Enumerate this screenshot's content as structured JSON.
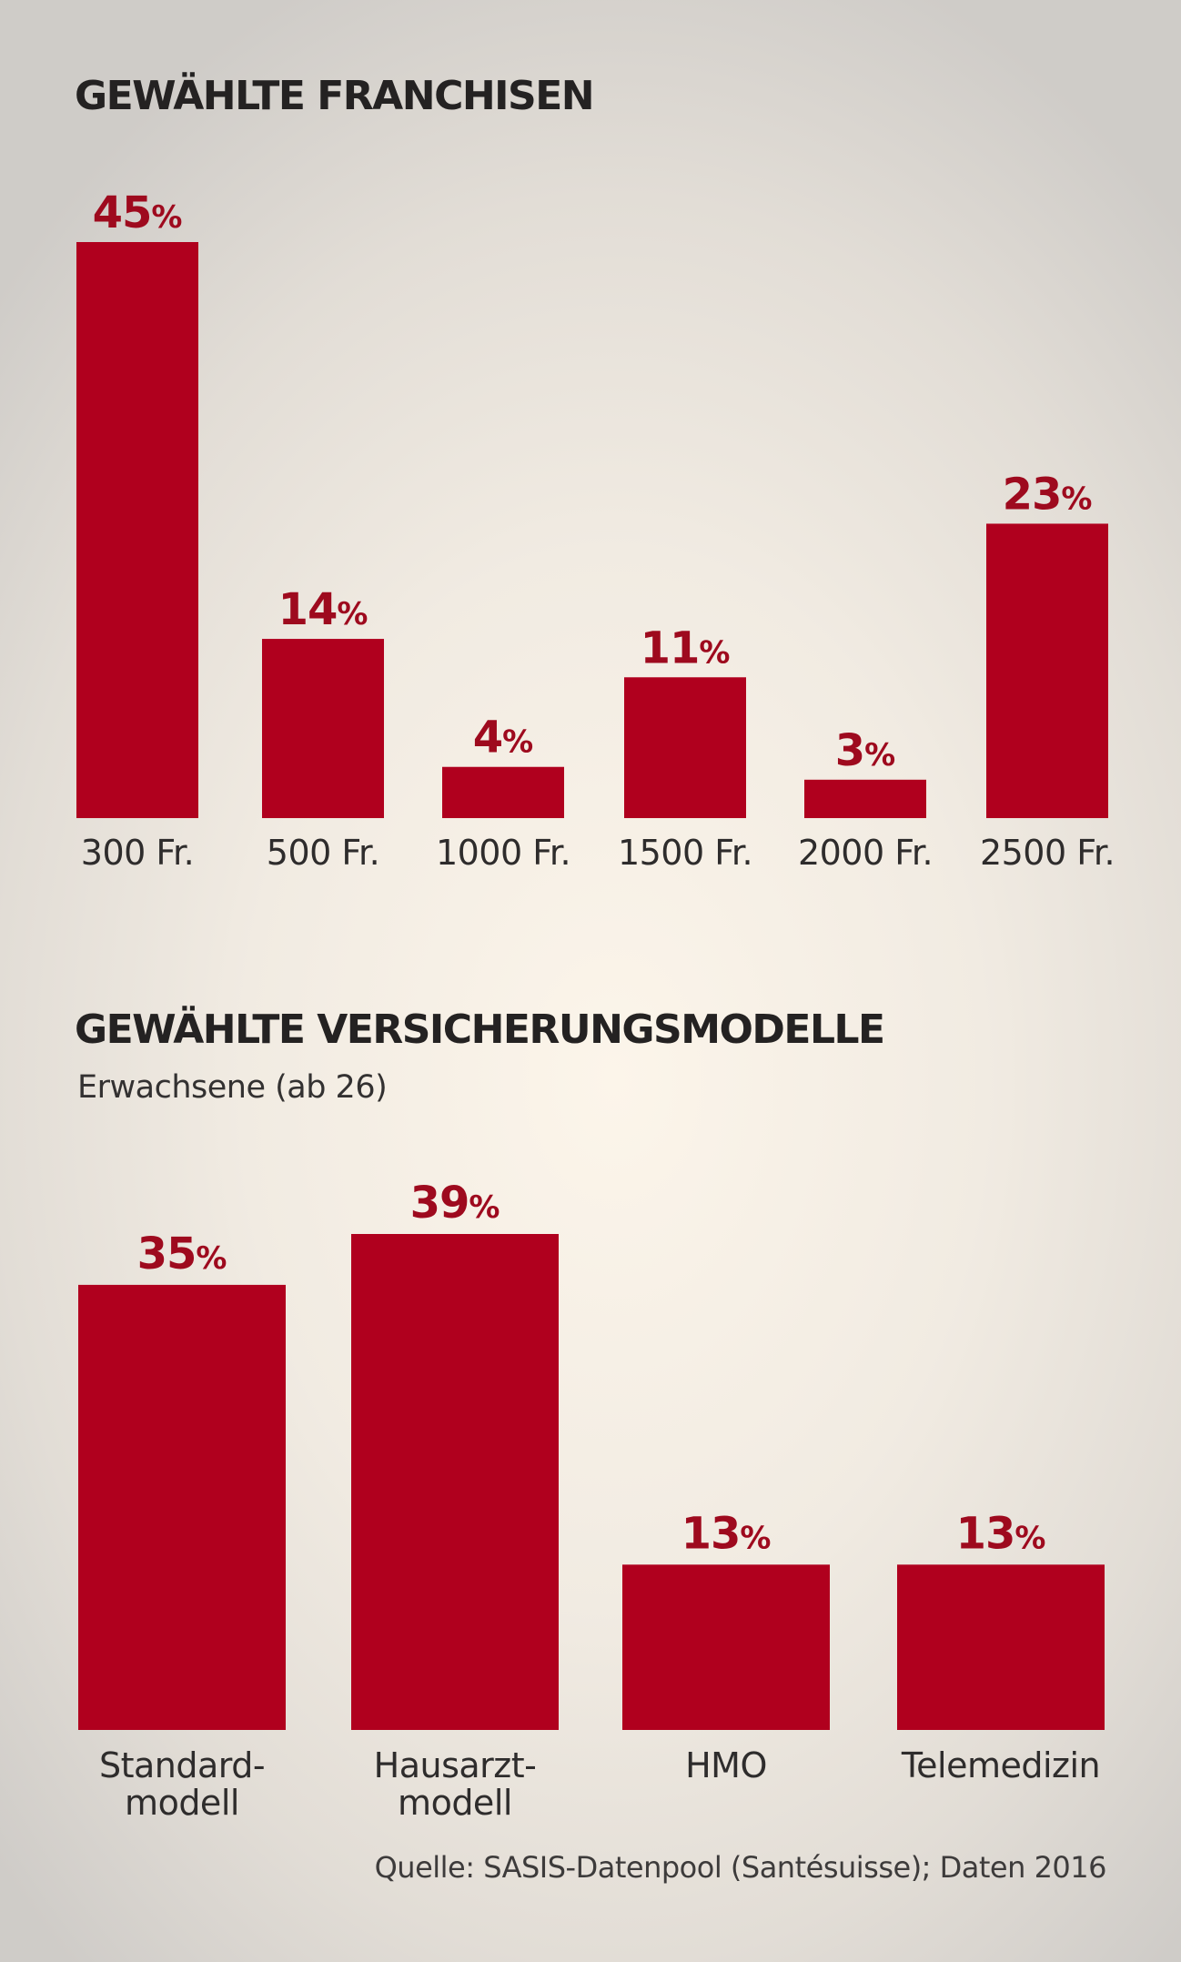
{
  "colors": {
    "bar": "#b0001e",
    "value_label": "#9e0a1e",
    "text": "#242222"
  },
  "chart_data": [
    {
      "type": "bar",
      "title": "GEWÄHLTE FRANCHISEN",
      "subtitle": "",
      "categories": [
        "300 Fr.",
        "500 Fr.",
        "1000 Fr.",
        "1500 Fr.",
        "2000 Fr.",
        "2500 Fr."
      ],
      "values": [
        45,
        14,
        4,
        11,
        3,
        23
      ],
      "value_suffix": "%",
      "xlabel": "",
      "ylabel": "",
      "ylim": [
        0,
        45
      ],
      "grid": false,
      "legend": "none"
    },
    {
      "type": "bar",
      "title": "GEWÄHLTE VERSICHERUNGSMODELLE",
      "subtitle": "Erwachsene (ab 26)",
      "categories": [
        [
          "Standard-",
          "modell"
        ],
        [
          "Hausarzt-",
          "modell"
        ],
        [
          "HMO"
        ],
        [
          "Telemedizin"
        ]
      ],
      "values": [
        35,
        39,
        13,
        13
      ],
      "value_suffix": "%",
      "xlabel": "",
      "ylabel": "",
      "ylim": [
        0,
        39
      ],
      "grid": false,
      "legend": "none"
    }
  ],
  "source": "Quelle: SASIS-Datenpool (Santésuisse); Daten 2016"
}
